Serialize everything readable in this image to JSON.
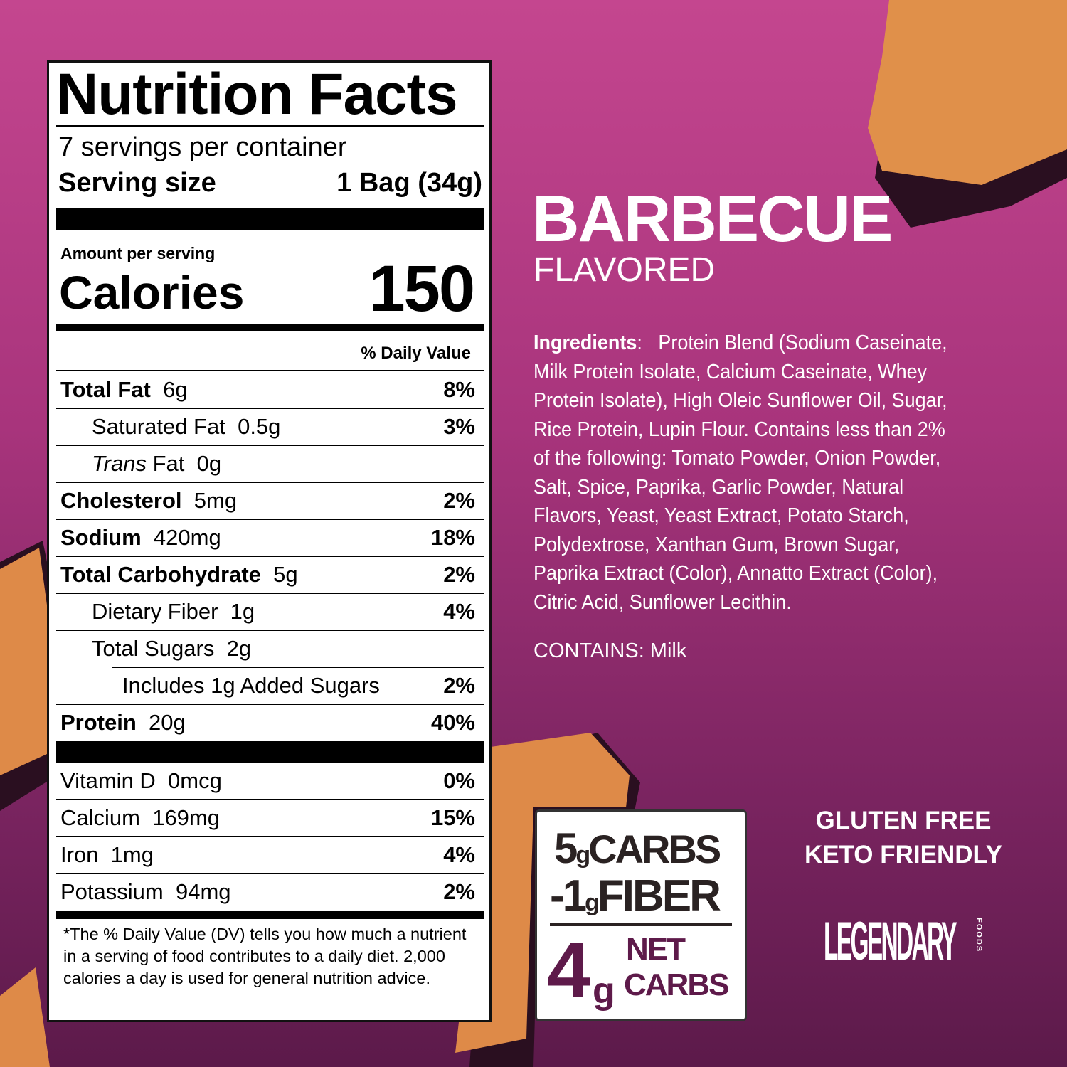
{
  "colors": {
    "bg_top": "#c4468f",
    "bg_bottom": "#5c1a4a",
    "accent": "#5e1a4a"
  },
  "label": {
    "title": "Nutrition Facts",
    "servings": "7 servings per container",
    "serving_size_label": "Serving size",
    "serving_size_value": "1 Bag (34g)",
    "amount_per_serving": "Amount per serving",
    "calories_label": "Calories",
    "calories_value": "150",
    "dv_header": "% Daily Value",
    "nutrients": [
      {
        "name": "Total Fat",
        "amount": "6g",
        "dv": "8%"
      },
      {
        "name": "Saturated Fat",
        "amount": "0.5g",
        "dv": "3%"
      },
      {
        "name": "Trans",
        "name2": "Fat",
        "amount": "0g",
        "dv": ""
      },
      {
        "name": "Cholesterol",
        "amount": "5mg",
        "dv": "2%"
      },
      {
        "name": "Sodium",
        "amount": "420mg",
        "dv": "18%"
      },
      {
        "name": "Total Carbohydrate",
        "amount": "5g",
        "dv": "2%"
      },
      {
        "name": "Dietary Fiber",
        "amount": "1g",
        "dv": "4%"
      },
      {
        "name": "Total Sugars",
        "amount": "2g",
        "dv": ""
      },
      {
        "name": "Includes 1g Added Sugars",
        "amount": "",
        "dv": "2%"
      },
      {
        "name": "Protein",
        "amount": "20g",
        "dv": "40%"
      }
    ],
    "vitamins": [
      {
        "name": "Vitamin D",
        "amount": "0mcg",
        "dv": "0%"
      },
      {
        "name": "Calcium",
        "amount": "169mg",
        "dv": "15%"
      },
      {
        "name": "Iron",
        "amount": "1mg",
        "dv": "4%"
      },
      {
        "name": "Potassium",
        "amount": "94mg",
        "dv": "2%"
      }
    ],
    "footnote": "*The % Daily Value (DV) tells you how much a nutrient in a serving of food contributes to a daily diet. 2,000 calories a day is used for general nutrition advice."
  },
  "product": {
    "flavor": "BARBECUE",
    "flavored": "FLAVORED",
    "ingredients_label": "Ingredients",
    "ingredients": "Protein Blend (Sodium Caseinate, Milk Protein Isolate, Calcium Caseinate, Whey Protein Isolate), High Oleic Sunflower Oil, Sugar, Rice Protein, Lupin Flour. Contains less than 2% of the following: Tomato Powder, Onion Powder, Salt, Spice, Paprika, Garlic Powder, Natural Flavors, Yeast, Yeast Extract, Potato Starch, Polydextrose, Xanthan Gum, Brown Sugar, Paprika Extract (Color), Annatto Extract (Color), Citric Acid, Sunflower Lecithin.",
    "contains": "CONTAINS: Milk"
  },
  "carbs_box": {
    "carbs_num": "5",
    "carbs_unit": "g",
    "carbs_label": "CARBS",
    "fiber_num": "-1",
    "fiber_unit": "g",
    "fiber_label": "FIBER",
    "net_num": "4",
    "net_unit": "g",
    "net_label1": "NET",
    "net_label2": "CARBS"
  },
  "badges": [
    "GLUTEN FREE",
    "KETO FRIENDLY"
  ],
  "logo": {
    "text": "LEGENDARY",
    "sub": "FOODS"
  }
}
